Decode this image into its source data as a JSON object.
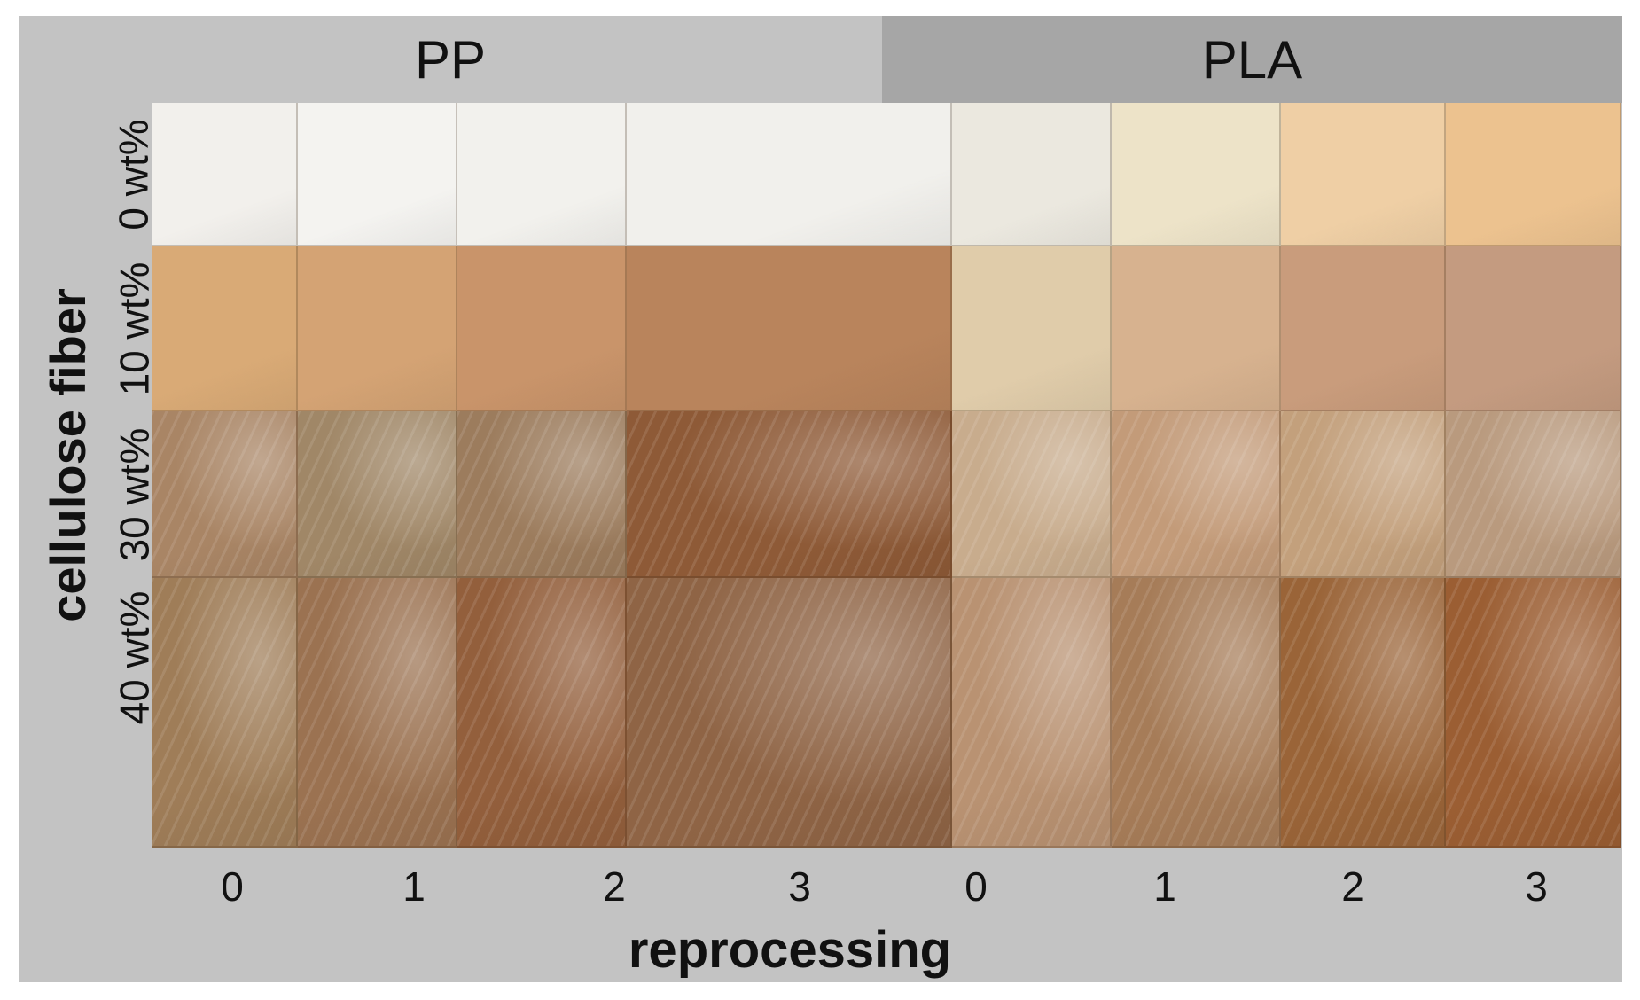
{
  "groups": [
    "PP",
    "PLA"
  ],
  "reprocessing_levels": [
    "0",
    "1",
    "2",
    "3",
    "0",
    "1",
    "2",
    "3"
  ],
  "fiber_contents": [
    "0 wt%",
    "10 wt%",
    "30 wt%",
    "40 wt%"
  ],
  "y_axis_title": "cellulose fiber",
  "x_axis_title": "reprocessing",
  "colors": {
    "background": "#c3c3c3",
    "pla_header": "#a6a6a6",
    "samples": [
      [
        "#f2f0ec",
        "#f4f3f0",
        "#f2f1ed",
        "#f1f0ec",
        "#ebe8df",
        "#ede3c8",
        "#efcfa5",
        "#ecc28f"
      ],
      [
        "#d9aa76",
        "#d4a374",
        "#c9946a",
        "#b9845c",
        "#e0ccaa",
        "#d7b28f",
        "#c99c7c",
        "#c49b80"
      ],
      [
        "#a98565",
        "#a08767",
        "#9c7c5d",
        "#8e5a37",
        "#c8ac8d",
        "#c39b79",
        "#c3a07c",
        "#b99a7e"
      ],
      [
        "#9f7d58",
        "#9b7251",
        "#935f3c",
        "#8f6445",
        "#b99272",
        "#a67c58",
        "#9a6438",
        "#9b5e33"
      ]
    ]
  }
}
